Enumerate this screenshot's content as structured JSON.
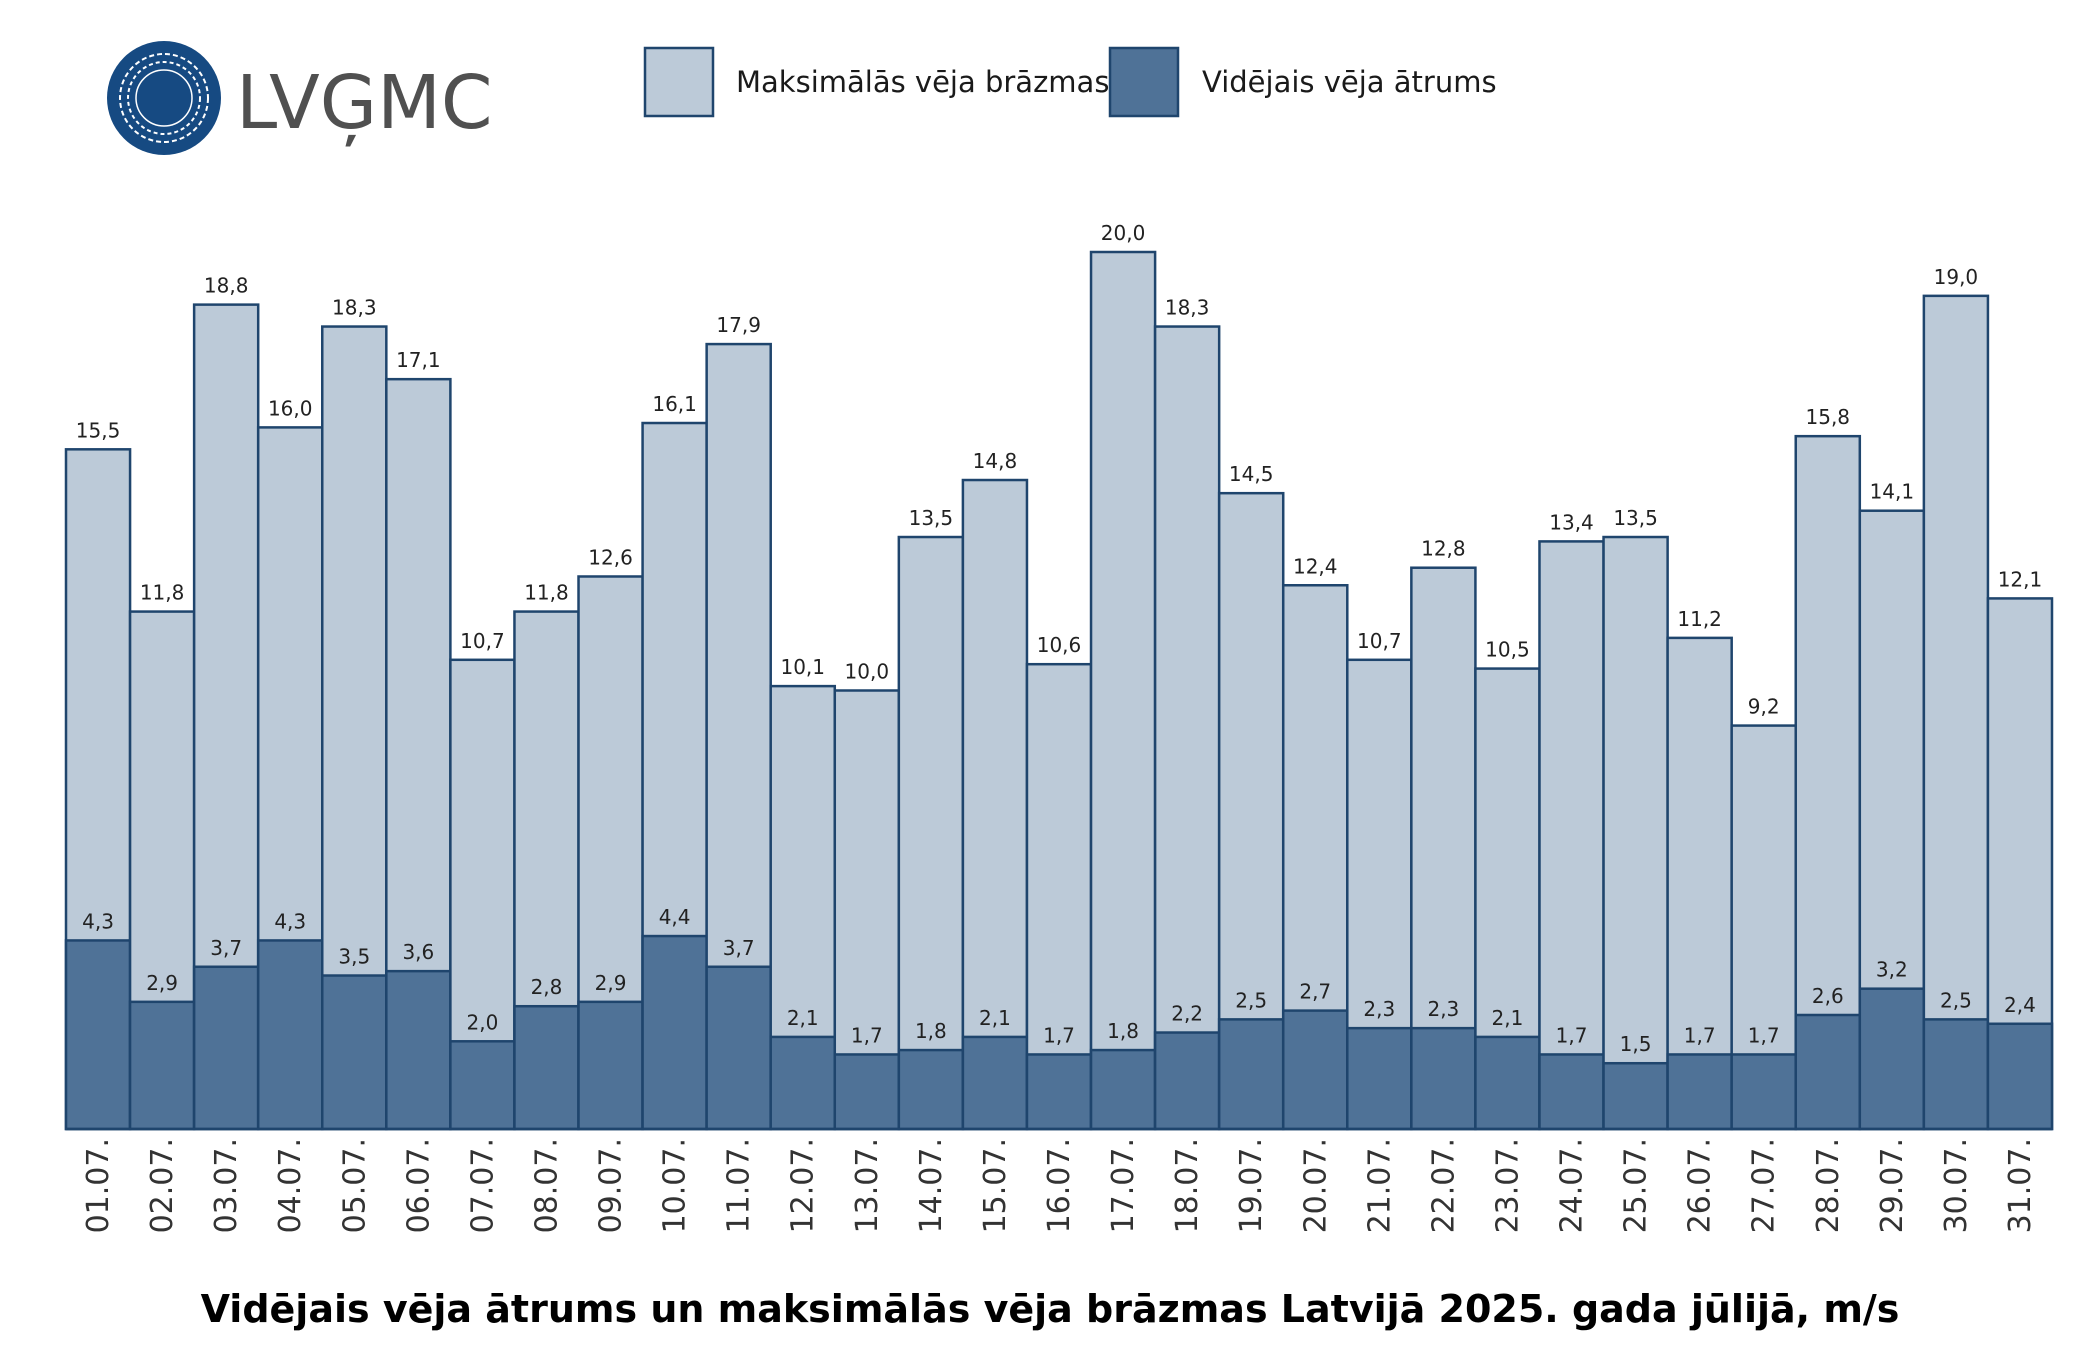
{
  "logo": {
    "text": "LVĢMC",
    "color": "#164a82"
  },
  "chart_data": {
    "type": "bar",
    "title": "Vidējais vēja ātrums un maksimālās vēja brāzmas Latvijā 2025. gada jūlijā, m/s",
    "xlabel": "",
    "ylabel": "",
    "ylim": [
      0,
      20
    ],
    "grid": false,
    "legend": "top",
    "categories": [
      "01.07.",
      "02.07.",
      "03.07.",
      "04.07.",
      "05.07.",
      "06.07.",
      "07.07.",
      "08.07.",
      "09.07.",
      "10.07.",
      "11.07.",
      "12.07.",
      "13.07.",
      "14.07.",
      "15.07.",
      "16.07.",
      "17.07.",
      "18.07.",
      "19.07.",
      "20.07.",
      "21.07.",
      "22.07.",
      "23.07.",
      "24.07.",
      "25.07.",
      "26.07.",
      "27.07.",
      "28.07.",
      "29.07.",
      "30.07.",
      "31.07."
    ],
    "series": [
      {
        "name": "Maksimālās vēja brāzmas",
        "color": "#bccad8",
        "values": [
          15.5,
          11.8,
          18.8,
          16.0,
          18.3,
          17.1,
          10.7,
          11.8,
          12.6,
          16.1,
          17.9,
          10.1,
          10.0,
          13.5,
          14.8,
          10.6,
          20.0,
          18.3,
          14.5,
          12.4,
          10.7,
          12.8,
          10.5,
          13.4,
          13.5,
          11.2,
          9.2,
          15.8,
          14.1,
          19.0,
          12.1
        ],
        "labels": [
          "15,5",
          "11,8",
          "18,8",
          "16,0",
          "18,3",
          "17,1",
          "10,7",
          "11,8",
          "12,6",
          "16,1",
          "17,9",
          "10,1",
          "10,0",
          "13,5",
          "14,8",
          "10,6",
          "20,0",
          "18,3",
          "14,5",
          "12,4",
          "10,7",
          "12,8",
          "10,5",
          "13,4",
          "13,5",
          "11,2",
          "9,2",
          "15,8",
          "14,1",
          "19,0",
          "12,1"
        ]
      },
      {
        "name": "Vidējais vēja ātrums",
        "color": "#4f7297",
        "values": [
          4.3,
          2.9,
          3.7,
          4.3,
          3.5,
          3.6,
          2.0,
          2.8,
          2.9,
          4.4,
          3.7,
          2.1,
          1.7,
          1.8,
          2.1,
          1.7,
          1.8,
          2.2,
          2.5,
          2.7,
          2.3,
          2.3,
          2.1,
          1.7,
          1.5,
          1.7,
          1.7,
          2.6,
          3.2,
          2.5,
          2.4
        ],
        "labels": [
          "4,3",
          "2,9",
          "3,7",
          "4,3",
          "3,5",
          "3,6",
          "2,0",
          "2,8",
          "2,9",
          "4,4",
          "3,7",
          "2,1",
          "1,7",
          "1,8",
          "2,1",
          "1,7",
          "1,8",
          "2,2",
          "2,5",
          "2,7",
          "2,3",
          "2,3",
          "2,1",
          "1,7",
          "1,5",
          "1,7",
          "1,7",
          "2,6",
          "3,2",
          "2,5",
          "2,4"
        ]
      }
    ],
    "border_color": "#1f456d"
  }
}
